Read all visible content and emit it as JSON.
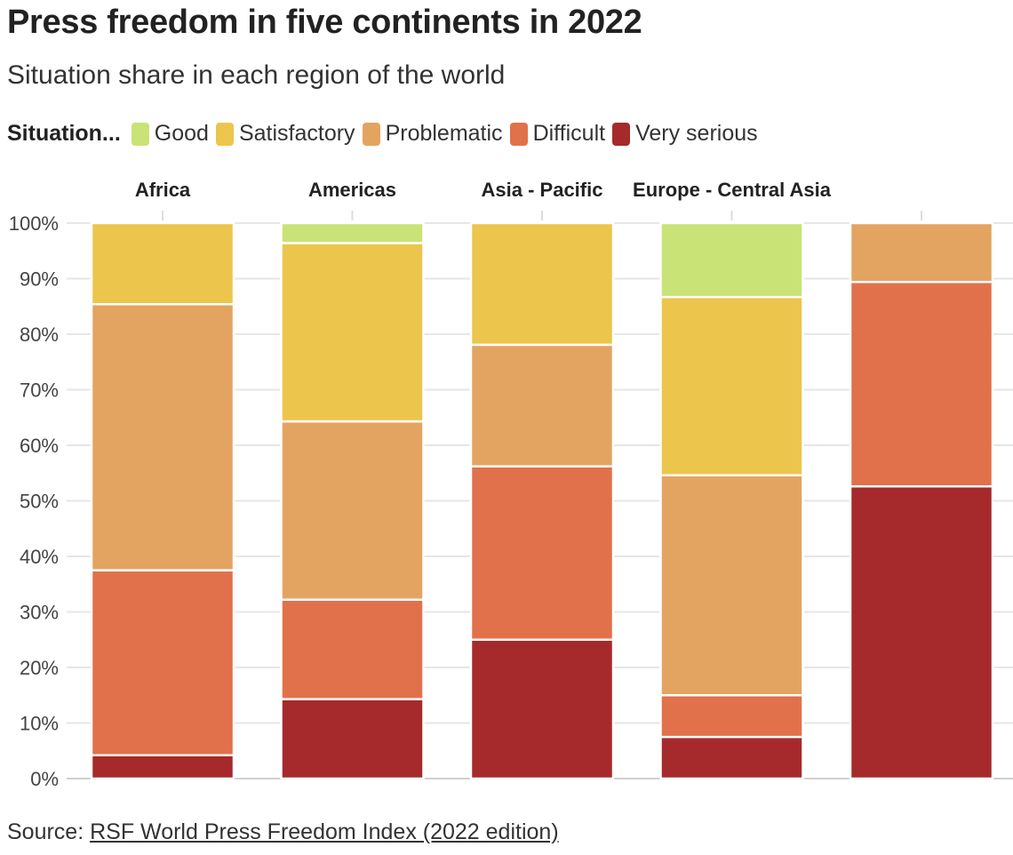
{
  "title": "Press freedom in five continents in 2022",
  "subtitle": "Situation share in each region of the world",
  "legend": {
    "title": "Situation...",
    "items": [
      {
        "label": "Good",
        "color": "#c9e377"
      },
      {
        "label": "Satisfactory",
        "color": "#ecc54c"
      },
      {
        "label": "Problematic",
        "color": "#e3a462"
      },
      {
        "label": "Difficult",
        "color": "#e1714b"
      },
      {
        "label": "Very serious",
        "color": "#a62a2b"
      }
    ]
  },
  "source": {
    "prefix": "Source: ",
    "link_text": "RSF World Press Freedom Index (2022 edition)"
  },
  "chart_data": {
    "type": "bar",
    "stacked": true,
    "categories": [
      "Africa",
      "Americas",
      "Asia - Pacific",
      "Europe - Central Asia",
      ""
    ],
    "series": [
      {
        "name": "Very serious",
        "values": [
          4.2,
          14.3,
          25,
          7.5,
          52.6
        ]
      },
      {
        "name": "Difficult",
        "values": [
          33.3,
          17.9,
          31.2,
          7.5,
          36.8
        ]
      },
      {
        "name": "Problematic",
        "values": [
          47.9,
          32.1,
          21.9,
          39.6,
          10.6
        ]
      },
      {
        "name": "Satisfactory",
        "values": [
          14.6,
          32.1,
          21.9,
          32.1,
          0
        ]
      },
      {
        "name": "Good",
        "values": [
          0,
          3.6,
          0,
          13.3,
          0
        ]
      }
    ],
    "ylim": [
      0,
      100
    ],
    "yticks": [
      "0%",
      "10%",
      "20%",
      "30%",
      "40%",
      "50%",
      "60%",
      "70%",
      "80%",
      "90%",
      "100%"
    ],
    "xlabel": "",
    "ylabel": ""
  }
}
